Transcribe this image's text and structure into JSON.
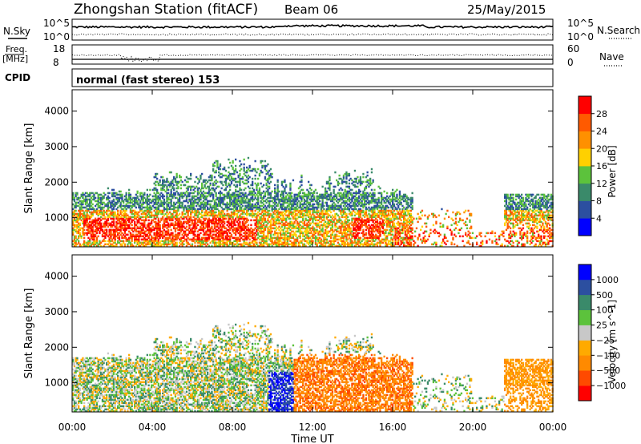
{
  "header": {
    "title": "Zhongshan Station (fitACF)",
    "beam": "Beam 06",
    "date": "25/May/2015"
  },
  "side_labels": {
    "nsky": "N.Sky",
    "freq": "Freq.",
    "mhz": "[MHz]",
    "cpid": "CPID",
    "nsearch": "N.Search",
    "nave": "Nave"
  },
  "small_axes": {
    "noise_top": "10^5",
    "noise_bottom": "10^0",
    "freq_top": "18",
    "freq_bottom": "8",
    "nave_top": "60",
    "nave_bottom": "0"
  },
  "cpid_text": "normal (fast stereo) 153",
  "colors": {
    "power": [
      "#0000ff",
      "#2c4fa0",
      "#3a8a6a",
      "#5cc23c",
      "#ffd000",
      "#ff9000",
      "#ff5a00",
      "#ff0000"
    ],
    "velocity": [
      "#ff0000",
      "#ff4a00",
      "#ff8a00",
      "#ffaa00",
      "#c8c8c8",
      "#5cc23c",
      "#3a8a6a",
      "#2c4fa0",
      "#0000ff"
    ]
  },
  "chart_data": [
    {
      "type": "heatmap",
      "panel": "power",
      "ylabel": "Slant Range [km]",
      "yticks": [
        1000,
        2000,
        3000,
        4000
      ],
      "ylim": [
        180,
        4600
      ],
      "xlim": [
        0,
        24
      ],
      "colorbar_label": "Power [dB]",
      "colorbar_ticks": [
        "4",
        "8",
        "12",
        "16",
        "20",
        "24",
        "28"
      ],
      "colorbar_range": [
        0,
        32
      ]
    },
    {
      "type": "heatmap",
      "panel": "velocity",
      "ylabel": "Slant Range [km]",
      "yticks": [
        1000,
        2000,
        3000,
        4000
      ],
      "ylim": [
        180,
        4600
      ],
      "xlim": [
        0,
        24
      ],
      "colorbar_label": "Velocity [m s^-1]",
      "colorbar_ticks": [
        "1000",
        "500",
        "100",
        "25",
        "−25",
        "−100",
        "−500",
        "−1000"
      ]
    }
  ],
  "xaxis": {
    "ticks": [
      "00:00",
      "04:00",
      "08:00",
      "12:00",
      "16:00",
      "20:00",
      "00:00"
    ],
    "label": "Time UT"
  }
}
